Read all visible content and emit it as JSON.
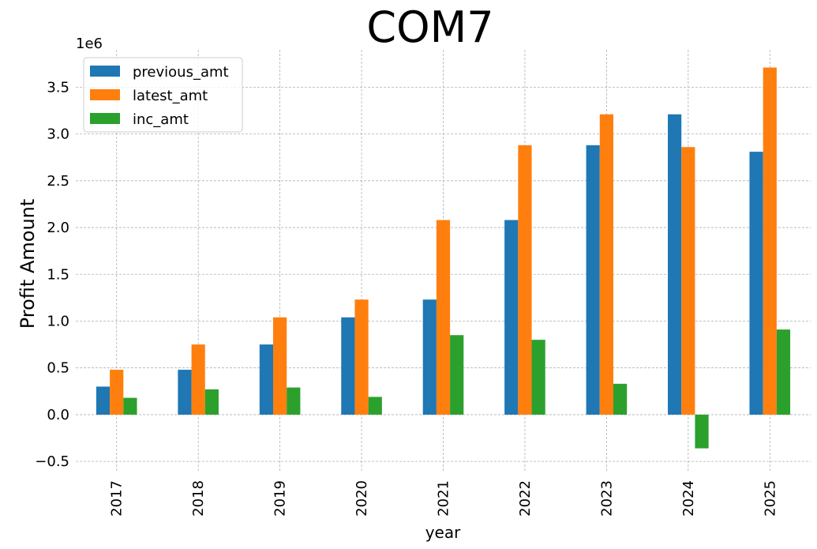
{
  "chart_data": {
    "type": "bar",
    "title": "COM7",
    "xlabel": "year",
    "ylabel": "Profit Amount",
    "y_scale_label": "1e6",
    "categories": [
      "2017",
      "2018",
      "2019",
      "2020",
      "2021",
      "2022",
      "2023",
      "2024",
      "2025"
    ],
    "series": [
      {
        "name": "previous_amt",
        "color": "#1f77b4",
        "values": [
          0.3,
          0.48,
          0.75,
          1.04,
          1.23,
          2.08,
          2.88,
          3.21,
          2.81
        ]
      },
      {
        "name": "latest_amt",
        "color": "#ff7f0e",
        "values": [
          0.48,
          0.75,
          1.04,
          1.23,
          2.08,
          2.88,
          3.21,
          2.86,
          3.71
        ]
      },
      {
        "name": "inc_amt",
        "color": "#2ca02c",
        "values": [
          0.18,
          0.27,
          0.29,
          0.19,
          0.85,
          0.8,
          0.33,
          -0.36,
          0.91
        ]
      }
    ],
    "ylim": [
      -0.6,
      3.9
    ],
    "yticks": [
      "−0.5",
      "0.0",
      "0.5",
      "1.0",
      "1.5",
      "2.0",
      "2.5",
      "3.0",
      "3.5"
    ],
    "ytick_values": [
      -0.5,
      0.0,
      0.5,
      1.0,
      1.5,
      2.0,
      2.5,
      3.0,
      3.5
    ],
    "grid": true,
    "legend_position": "upper-left"
  }
}
